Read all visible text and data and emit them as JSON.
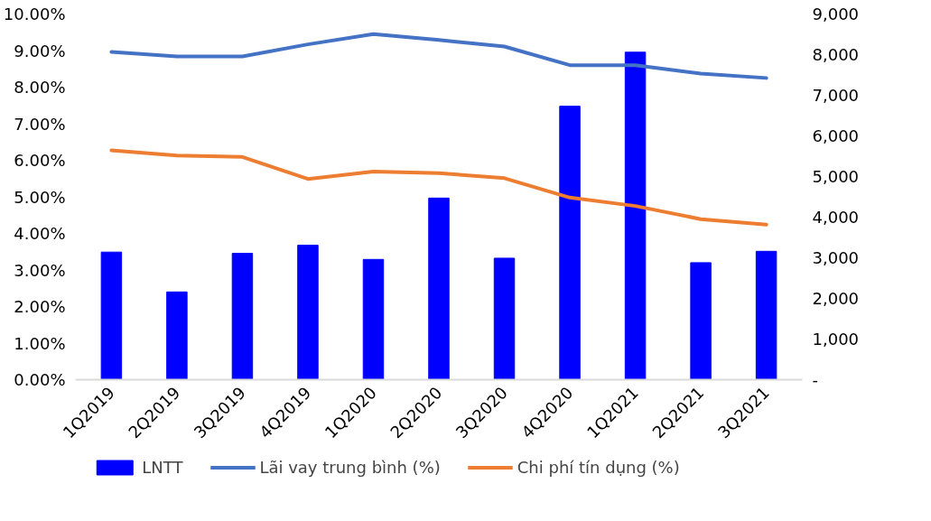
{
  "chart_data": {
    "type": "bar",
    "categories": [
      "1Q2019",
      "2Q2019",
      "3Q2019",
      "4Q2019",
      "1Q2020",
      "2Q2020",
      "3Q2020",
      "4Q2020",
      "1Q2021",
      "2Q2021",
      "3Q2021"
    ],
    "series": [
      {
        "name": "LNTT",
        "type": "bar",
        "axis": "y2",
        "color": "#0000ff",
        "values": [
          3140,
          2160,
          3110,
          3310,
          2960,
          4470,
          2990,
          6730,
          8060,
          2880,
          3160
        ]
      },
      {
        "name": "Lãi vay trung bình (%)",
        "type": "line",
        "color": "#4472c4",
        "values": [
          8.96,
          8.84,
          8.84,
          9.17,
          9.45,
          9.29,
          9.11,
          8.6,
          8.6,
          8.37,
          8.25
        ]
      },
      {
        "name": "Chi phí tín dụng (%)",
        "type": "line",
        "color": "#ed7d31",
        "values": [
          6.27,
          6.13,
          6.09,
          5.49,
          5.69,
          5.65,
          5.51,
          4.98,
          4.75,
          4.39,
          4.24
        ]
      }
    ],
    "ylim": [
      0,
      10
    ],
    "yticks": [
      {
        "value": 0,
        "label": "0.00%"
      },
      {
        "value": 1,
        "label": "1.00%"
      },
      {
        "value": 2,
        "label": "2.00%"
      },
      {
        "value": 3,
        "label": "3.00%"
      },
      {
        "value": 4,
        "label": "4.00%"
      },
      {
        "value": 5,
        "label": "5.00%"
      },
      {
        "value": 6,
        "label": "6.00%"
      },
      {
        "value": 7,
        "label": "7.00%"
      },
      {
        "value": 8,
        "label": "8.00%"
      },
      {
        "value": 9,
        "label": "9.00%"
      },
      {
        "value": 10,
        "label": "10.00%"
      }
    ],
    "y2lim": [
      0,
      9000
    ],
    "y2ticks": [
      {
        "value": 0,
        "label": "-"
      },
      {
        "value": 1000,
        "label": "1,000"
      },
      {
        "value": 2000,
        "label": "2,000"
      },
      {
        "value": 3000,
        "label": "3,000"
      },
      {
        "value": 4000,
        "label": "4,000"
      },
      {
        "value": 5000,
        "label": "5,000"
      },
      {
        "value": 6000,
        "label": "6,000"
      },
      {
        "value": 7000,
        "label": "7,000"
      },
      {
        "value": 8000,
        "label": "8,000"
      },
      {
        "value": 9000,
        "label": "9,000"
      }
    ],
    "grid": false,
    "legend": "bottom",
    "line_style": "solid",
    "marker": "none"
  }
}
